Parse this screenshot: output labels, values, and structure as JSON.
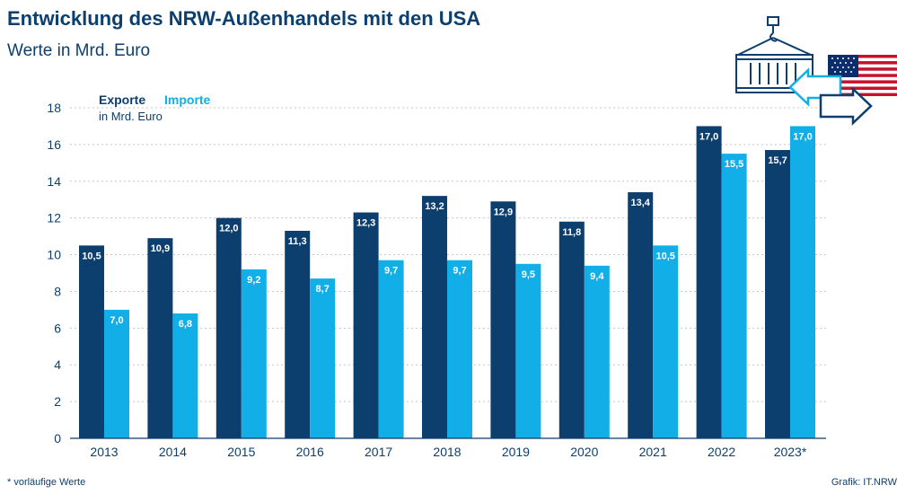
{
  "header": {
    "title": "Entwicklung des NRW-Außenhandels mit den USA",
    "subtitle": "Werte in Mrd. Euro"
  },
  "footer": {
    "footnote": "* vorläufige Werte",
    "source": "Grafik: IT.NRW"
  },
  "icons": [
    "container-crane-icon",
    "us-flag-icon",
    "trade-arrows-icon"
  ],
  "colors": {
    "exporte": "#0c3f6e",
    "importe": "#12aee8",
    "text": "#0c3f6e",
    "grid": "#bfc7d0"
  },
  "chart_data": {
    "type": "bar",
    "categories": [
      "2013",
      "2014",
      "2015",
      "2016",
      "2017",
      "2018",
      "2019",
      "2020",
      "2021",
      "2022",
      "2023*"
    ],
    "series": [
      {
        "name": "Exporte",
        "values": [
          10.5,
          10.9,
          12.0,
          11.3,
          12.3,
          13.2,
          12.9,
          11.8,
          13.4,
          17.0,
          15.7
        ],
        "labels": [
          "10,5",
          "10,9",
          "12,0",
          "11,3",
          "12,3",
          "13,2",
          "12,9",
          "11,8",
          "13,4",
          "17,0",
          "15,7"
        ]
      },
      {
        "name": "Importe",
        "values": [
          7.0,
          6.8,
          9.2,
          8.7,
          9.7,
          9.7,
          9.5,
          9.4,
          10.5,
          15.5,
          17.0
        ],
        "labels": [
          "7,0",
          "6,8",
          "9,2",
          "8,7",
          "9,7",
          "9,7",
          "9,5",
          "9,4",
          "10,5",
          "15,5",
          "17,0"
        ]
      }
    ],
    "unit": "in Mrd. Euro",
    "ylim": [
      0,
      18
    ],
    "yticks": [
      0,
      2,
      4,
      6,
      8,
      10,
      12,
      14,
      16,
      18
    ],
    "grid": true,
    "legend_position": "top-left"
  }
}
